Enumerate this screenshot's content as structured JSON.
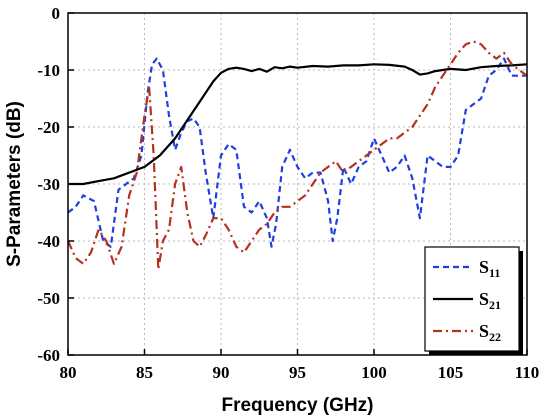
{
  "chart_data": {
    "type": "line",
    "title": "",
    "xlabel": "Frequency (GHz)",
    "ylabel": "S-Parameters (dB)",
    "xlim": [
      80,
      110
    ],
    "ylim": [
      -60,
      0
    ],
    "xticks": [
      80,
      85,
      90,
      95,
      100,
      105,
      110
    ],
    "yticks": [
      0,
      -10,
      -20,
      -30,
      -40,
      -50,
      -60
    ],
    "grid": true,
    "legend_position": "bottom-right",
    "series": [
      {
        "name": "S11",
        "legend_main": "S",
        "legend_sub": "11",
        "color": "#1f3fe0",
        "style": "dashed",
        "x": [
          80.0,
          80.5,
          81.0,
          81.7,
          82.3,
          82.8,
          83.3,
          83.8,
          84.3,
          84.8,
          85.2,
          85.5,
          85.8,
          86.2,
          86.6,
          87.0,
          87.4,
          87.8,
          88.2,
          88.6,
          89.0,
          89.5,
          90.0,
          90.5,
          91.0,
          91.5,
          92.0,
          92.5,
          93.0,
          93.3,
          93.6,
          94.0,
          94.5,
          95.0,
          95.5,
          96.0,
          96.5,
          97.0,
          97.3,
          97.6,
          98.0,
          98.5,
          99.0,
          99.5,
          100.0,
          100.5,
          101.0,
          101.5,
          102.0,
          102.5,
          103.0,
          103.5,
          104.0,
          104.5,
          105.0,
          105.5,
          106.0,
          106.5,
          107.0,
          107.5,
          108.0,
          108.5,
          109.0,
          109.5,
          110.0
        ],
        "y": [
          -35,
          -34,
          -32,
          -33,
          -40,
          -41,
          -31,
          -30,
          -29,
          -25,
          -14,
          -9,
          -8,
          -10,
          -18,
          -24,
          -21,
          -19,
          -18.5,
          -20,
          -28,
          -36,
          -25,
          -23,
          -24,
          -34,
          -35,
          -33,
          -36,
          -41,
          -37,
          -27,
          -24,
          -27,
          -29,
          -28,
          -28,
          -33,
          -40,
          -36,
          -27,
          -30,
          -27,
          -26,
          -22,
          -25,
          -28,
          -27,
          -25,
          -29,
          -36,
          -25,
          -26,
          -27,
          -27,
          -25,
          -17,
          -16,
          -15,
          -11,
          -10,
          -8,
          -11,
          -11,
          -11
        ]
      },
      {
        "name": "S21",
        "legend_main": "S",
        "legend_sub": "21",
        "color": "#000000",
        "style": "solid",
        "x": [
          80.0,
          81.0,
          82.0,
          83.0,
          84.0,
          85.0,
          86.0,
          87.0,
          88.0,
          89.0,
          89.5,
          90.0,
          90.5,
          91.0,
          91.5,
          92.0,
          92.5,
          93.0,
          93.5,
          94.0,
          94.5,
          95.0,
          96.0,
          97.0,
          98.0,
          99.0,
          100.0,
          101.0,
          102.0,
          102.5,
          103.0,
          103.5,
          104.0,
          105.0,
          106.0,
          107.0,
          108.0,
          109.0,
          110.0
        ],
        "y": [
          -30,
          -30,
          -29.5,
          -29,
          -28,
          -27,
          -25,
          -22,
          -18,
          -14,
          -12,
          -10.5,
          -9.8,
          -9.6,
          -9.8,
          -10.2,
          -9.8,
          -10.3,
          -9.5,
          -9.7,
          -9.4,
          -9.6,
          -9.3,
          -9.4,
          -9.2,
          -9.2,
          -9.0,
          -9.1,
          -9.4,
          -10.0,
          -10.8,
          -10.6,
          -10.2,
          -9.8,
          -10.0,
          -9.5,
          -9.3,
          -9.2,
          -9.0
        ]
      },
      {
        "name": "S22",
        "legend_main": "S",
        "legend_sub": "22",
        "color": "#b5321e",
        "style": "dashdot",
        "x": [
          80.0,
          80.5,
          81.0,
          81.5,
          82.0,
          82.5,
          83.0,
          83.5,
          84.0,
          84.5,
          85.0,
          85.3,
          85.6,
          85.9,
          86.2,
          86.6,
          87.0,
          87.4,
          87.8,
          88.2,
          88.6,
          89.0,
          89.5,
          90.0,
          90.5,
          91.0,
          91.5,
          92.0,
          92.5,
          93.0,
          93.5,
          94.0,
          94.5,
          95.0,
          95.5,
          96.0,
          96.5,
          97.0,
          97.5,
          98.0,
          98.5,
          99.0,
          99.5,
          100.0,
          100.5,
          101.0,
          101.5,
          102.0,
          102.5,
          103.0,
          103.5,
          104.0,
          104.5,
          105.0,
          105.5,
          106.0,
          106.5,
          107.0,
          107.5,
          108.0,
          108.5,
          109.0,
          109.5,
          110.0
        ],
        "y": [
          -40,
          -43,
          -44,
          -42,
          -38,
          -40,
          -44,
          -41,
          -32,
          -28,
          -18,
          -13,
          -25,
          -45,
          -40,
          -38,
          -30,
          -27,
          -35,
          -40,
          -41,
          -39,
          -36,
          -36,
          -38,
          -41,
          -42,
          -40,
          -38,
          -37,
          -35,
          -34,
          -34,
          -33,
          -32,
          -30,
          -28,
          -27,
          -26,
          -28,
          -27,
          -26,
          -25,
          -24,
          -23,
          -22,
          -22,
          -21,
          -20,
          -18,
          -16,
          -13,
          -11,
          -9,
          -7,
          -5.5,
          -5,
          -5.5,
          -7,
          -8,
          -7,
          -9,
          -10,
          -11
        ]
      }
    ]
  }
}
